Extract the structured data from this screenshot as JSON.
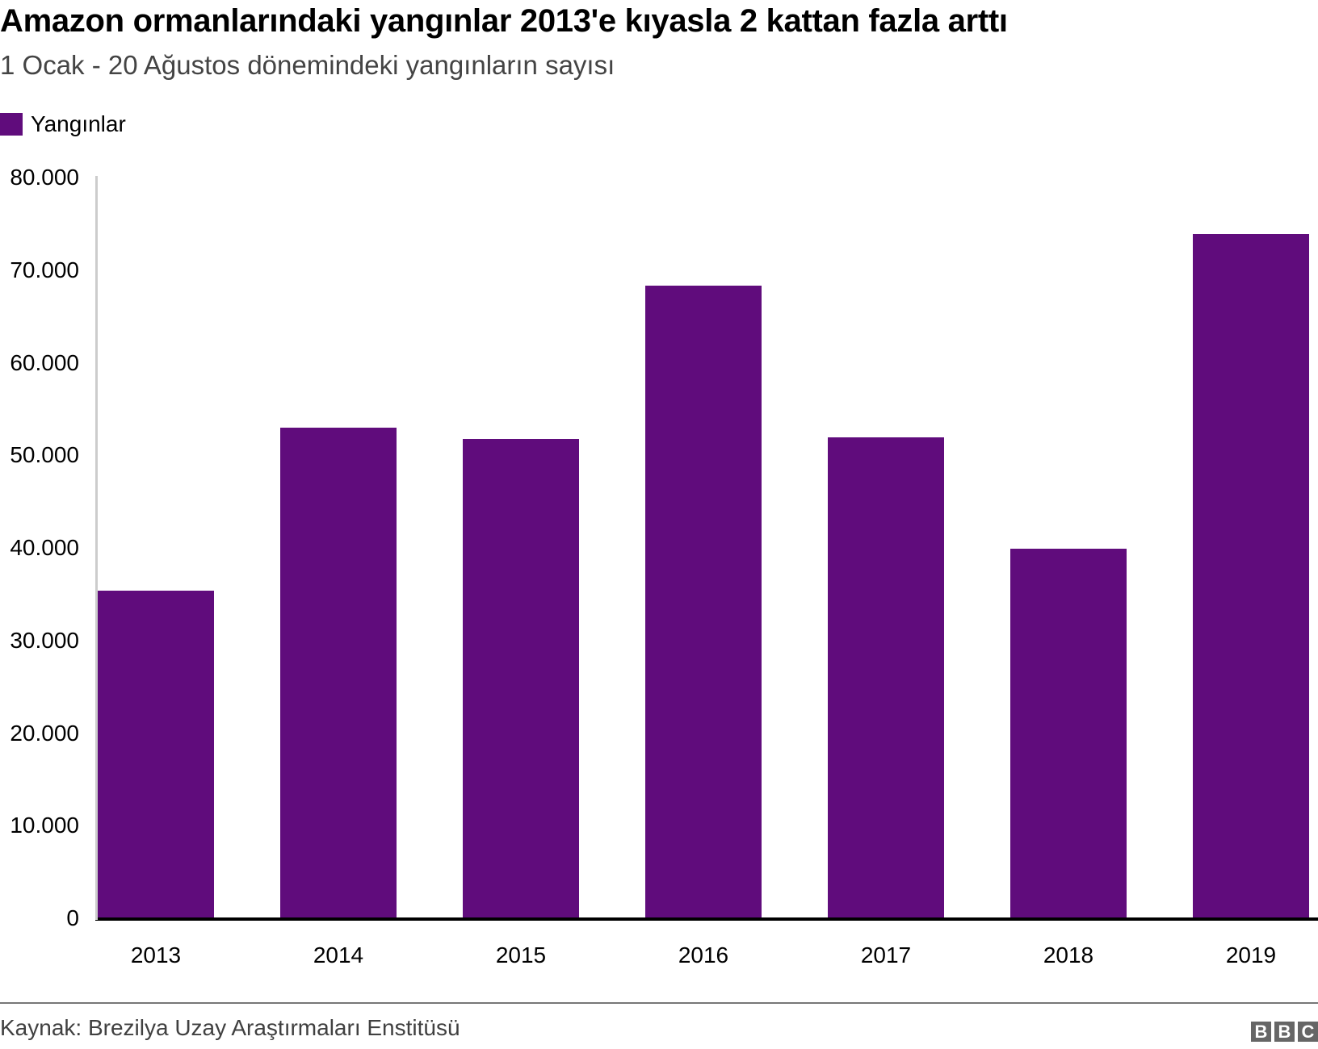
{
  "header": {
    "title": "Amazon ormanlarındaki yangınlar 2013'e kıyasla 2 kattan fazla arttı",
    "subtitle": "1 Ocak - 20 Ağustos dönemindeki yangınların sayısı"
  },
  "legend": {
    "label": "Yangınlar",
    "color": "#600c7c"
  },
  "footer": {
    "source": "Kaynak: Brezilya Uzay Araştırmaları Enstitüsü",
    "logo": [
      "B",
      "B",
      "C"
    ]
  },
  "chart_data": {
    "type": "bar",
    "title": "Amazon ormanlarındaki yangınlar 2013'e kıyasla 2 kattan fazla arttı",
    "subtitle": "1 Ocak - 20 Ağustos dönemindeki yangınların sayısı",
    "xlabel": "",
    "ylabel": "",
    "categories": [
      "2013",
      "2014",
      "2015",
      "2016",
      "2017",
      "2018",
      "2019"
    ],
    "series": [
      {
        "name": "Yangınlar",
        "color": "#600c7c",
        "values": [
          35400,
          53000,
          51800,
          68300,
          51900,
          39900,
          73900
        ]
      }
    ],
    "ylim": [
      0,
      80000
    ],
    "yticks": [
      0,
      10000,
      20000,
      30000,
      40000,
      50000,
      60000,
      70000,
      80000
    ],
    "ytick_labels": [
      "0",
      "10.000",
      "20.000",
      "30.000",
      "40.000",
      "50.000",
      "60.000",
      "70.000",
      "80.000"
    ],
    "grid": false,
    "legend_position": "top-left",
    "source": "Kaynak: Brezilya Uzay Araştırmaları Enstitüsü"
  }
}
